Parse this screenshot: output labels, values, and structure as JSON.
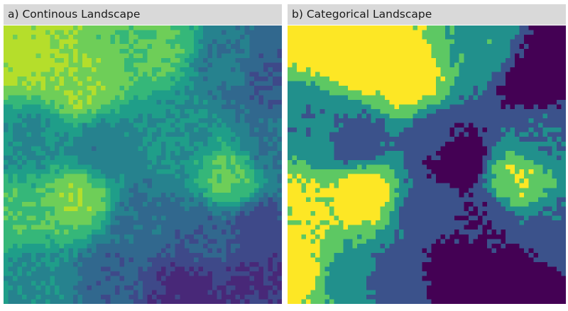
{
  "figure": {
    "panels": [
      {
        "title": "a) Continous Landscape"
      },
      {
        "title": "b) Categorical Landscape"
      }
    ]
  },
  "palette": {
    "viridis": [
      "#440154",
      "#482878",
      "#3e4989",
      "#31688e",
      "#26828e",
      "#1f9e89",
      "#35b779",
      "#6ece58",
      "#b5de2b",
      "#fde725"
    ],
    "categories": [
      "#440154",
      "#3b528b",
      "#21908c",
      "#5dc863",
      "#fde725"
    ]
  },
  "chart_data": [
    {
      "type": "heatmap",
      "title": "a) Continous Landscape",
      "grid_size": [
        60,
        60
      ],
      "value_range": [
        0,
        1
      ],
      "colormap": "viridis",
      "axes_visible": false,
      "anchors": [
        {
          "x": 0.08,
          "y": 0.1,
          "value": 0.88
        },
        {
          "x": 0.28,
          "y": 0.22,
          "value": 0.82
        },
        {
          "x": 0.55,
          "y": 0.08,
          "value": 0.74
        },
        {
          "x": 0.8,
          "y": 0.15,
          "value": 0.4
        },
        {
          "x": 0.95,
          "y": 0.2,
          "value": 0.28
        },
        {
          "x": 0.1,
          "y": 0.42,
          "value": 0.48
        },
        {
          "x": 0.35,
          "y": 0.45,
          "value": 0.42
        },
        {
          "x": 0.62,
          "y": 0.38,
          "value": 0.5
        },
        {
          "x": 0.82,
          "y": 0.55,
          "value": 0.75
        },
        {
          "x": 0.97,
          "y": 0.45,
          "value": 0.38
        },
        {
          "x": 0.05,
          "y": 0.68,
          "value": 0.7
        },
        {
          "x": 0.27,
          "y": 0.62,
          "value": 0.82
        },
        {
          "x": 0.5,
          "y": 0.7,
          "value": 0.35
        },
        {
          "x": 0.72,
          "y": 0.75,
          "value": 0.3
        },
        {
          "x": 0.92,
          "y": 0.72,
          "value": 0.22
        },
        {
          "x": 0.1,
          "y": 0.92,
          "value": 0.48
        },
        {
          "x": 0.4,
          "y": 0.9,
          "value": 0.3
        },
        {
          "x": 0.65,
          "y": 0.95,
          "value": 0.12
        },
        {
          "x": 0.9,
          "y": 0.95,
          "value": 0.15
        }
      ]
    },
    {
      "type": "heatmap",
      "title": "b) Categorical Landscape",
      "grid_size": [
        60,
        60
      ],
      "classes": 5,
      "colormap": "viridis (5 classes)",
      "axes_visible": false,
      "anchors": [
        {
          "x": 0.3,
          "y": 0.12,
          "value": 0.97
        },
        {
          "x": 0.15,
          "y": 0.05,
          "value": 0.95
        },
        {
          "x": 0.45,
          "y": 0.2,
          "value": 0.9
        },
        {
          "x": 0.7,
          "y": 0.08,
          "value": 0.55
        },
        {
          "x": 0.88,
          "y": 0.2,
          "value": 0.05
        },
        {
          "x": 0.98,
          "y": 0.1,
          "value": 0.1
        },
        {
          "x": 0.08,
          "y": 0.35,
          "value": 0.45
        },
        {
          "x": 0.25,
          "y": 0.42,
          "value": 0.3
        },
        {
          "x": 0.55,
          "y": 0.4,
          "value": 0.25
        },
        {
          "x": 0.62,
          "y": 0.48,
          "value": 0.05
        },
        {
          "x": 0.82,
          "y": 0.55,
          "value": 0.8
        },
        {
          "x": 0.9,
          "y": 0.4,
          "value": 0.4
        },
        {
          "x": 0.28,
          "y": 0.6,
          "value": 0.92
        },
        {
          "x": 0.05,
          "y": 0.65,
          "value": 0.85
        },
        {
          "x": 0.5,
          "y": 0.65,
          "value": 0.3
        },
        {
          "x": 0.7,
          "y": 0.7,
          "value": 0.2
        },
        {
          "x": 0.05,
          "y": 0.88,
          "value": 0.9
        },
        {
          "x": 0.2,
          "y": 0.9,
          "value": 0.5
        },
        {
          "x": 0.4,
          "y": 0.92,
          "value": 0.3
        },
        {
          "x": 0.62,
          "y": 0.9,
          "value": 0.02
        },
        {
          "x": 0.85,
          "y": 0.92,
          "value": 0.05
        },
        {
          "x": 0.95,
          "y": 0.75,
          "value": 0.35
        }
      ]
    }
  ]
}
